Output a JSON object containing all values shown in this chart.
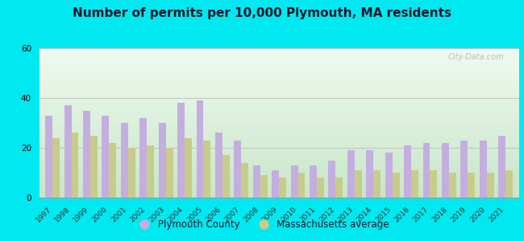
{
  "title": "Number of permits per 10,000 Plymouth, MA residents",
  "years": [
    1997,
    1998,
    1999,
    2000,
    2001,
    2002,
    2003,
    2004,
    2005,
    2006,
    2007,
    2008,
    2009,
    2010,
    2011,
    2012,
    2013,
    2014,
    2015,
    2016,
    2017,
    2018,
    2019,
    2020,
    2021
  ],
  "plymouth_county": [
    33,
    37,
    35,
    33,
    30,
    32,
    30,
    38,
    39,
    26,
    23,
    13,
    11,
    13,
    13,
    15,
    19,
    19,
    18,
    21,
    22,
    22,
    23,
    23,
    25
  ],
  "ma_average": [
    24,
    26,
    25,
    22,
    20,
    21,
    20,
    24,
    23,
    17,
    14,
    9,
    8,
    10,
    8,
    8,
    11,
    11,
    10,
    11,
    11,
    10,
    10,
    10,
    11
  ],
  "plymouth_color": "#c4aee0",
  "ma_color": "#c8cc8a",
  "background_top": "#c8e6c9",
  "background_bottom": "#f0faf0",
  "outer_background": "#00e8f0",
  "title_fontsize": 11,
  "ylim": [
    0,
    60
  ],
  "yticks": [
    0,
    20,
    40,
    60
  ],
  "legend_labels": [
    "Plymouth County",
    "Massachusetts average"
  ],
  "bar_width": 0.38
}
